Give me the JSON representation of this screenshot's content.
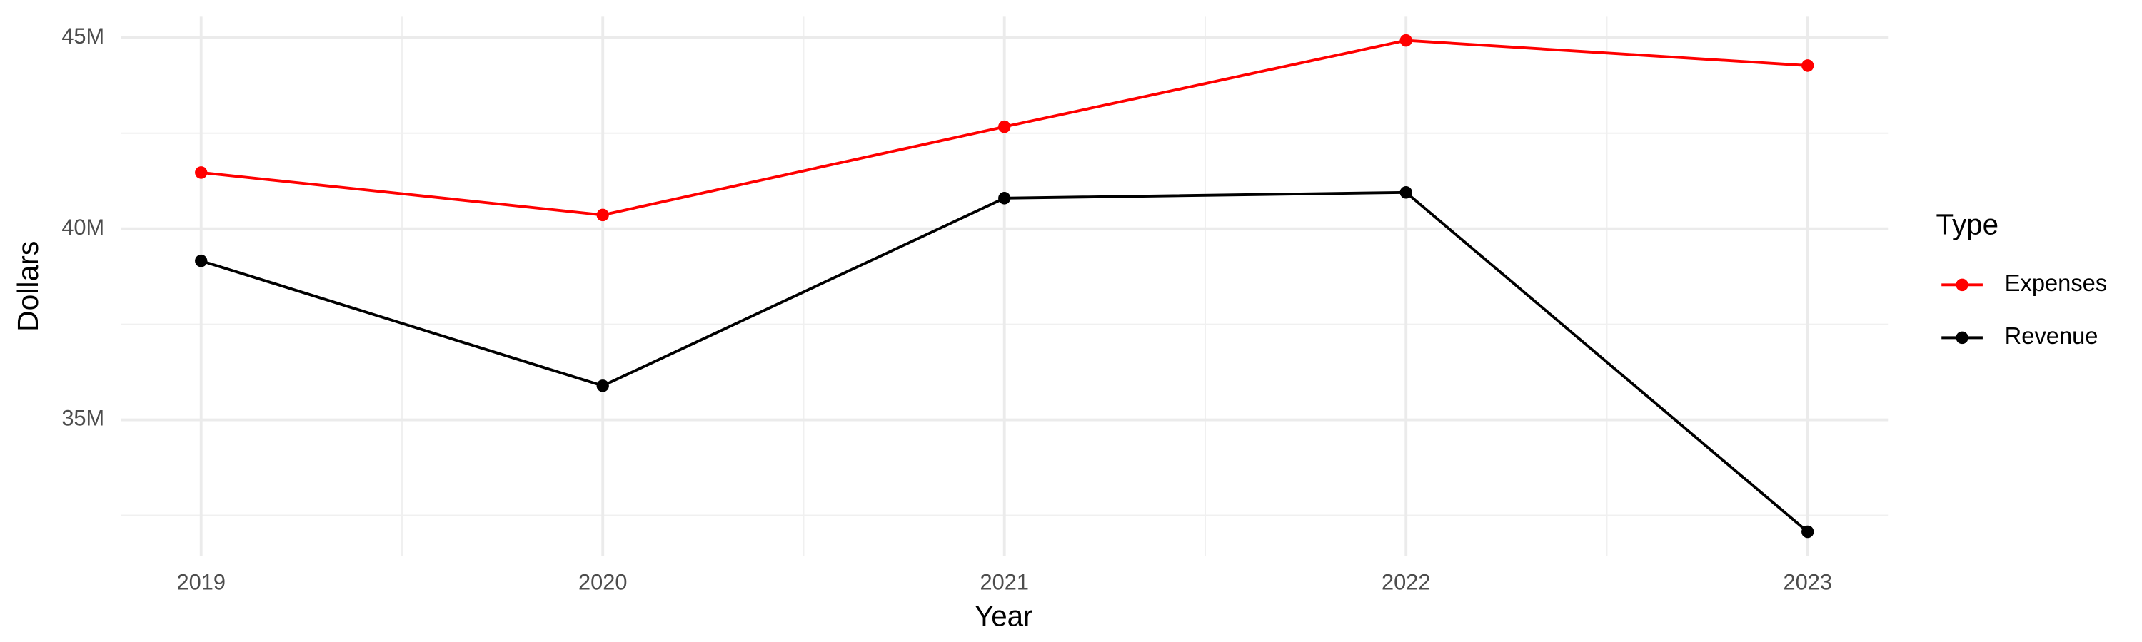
{
  "chart_data": {
    "type": "line",
    "x_label": "Year",
    "y_label": "Dollars",
    "legend_title": "Type",
    "x": [
      2019,
      2020,
      2021,
      2022,
      2023
    ],
    "series": [
      {
        "name": "Expenses",
        "color": "#ff0000",
        "values": [
          41470000,
          40360000,
          42670000,
          44930000,
          44270000
        ]
      },
      {
        "name": "Revenue",
        "color": "#000000",
        "values": [
          39160000,
          35890000,
          40800000,
          40950000,
          32070000
        ]
      }
    ],
    "xlim": [
      2018.8,
      2023.2
    ],
    "xticks": [
      2019,
      2020,
      2021,
      2022,
      2023
    ],
    "ylim": [
      31440000,
      45550000
    ],
    "yticks": [
      {
        "value": 35000000,
        "label": "35M"
      },
      {
        "value": 40000000,
        "label": "40M"
      },
      {
        "value": 45000000,
        "label": "45M"
      }
    ],
    "grid": true,
    "legend": "right"
  }
}
